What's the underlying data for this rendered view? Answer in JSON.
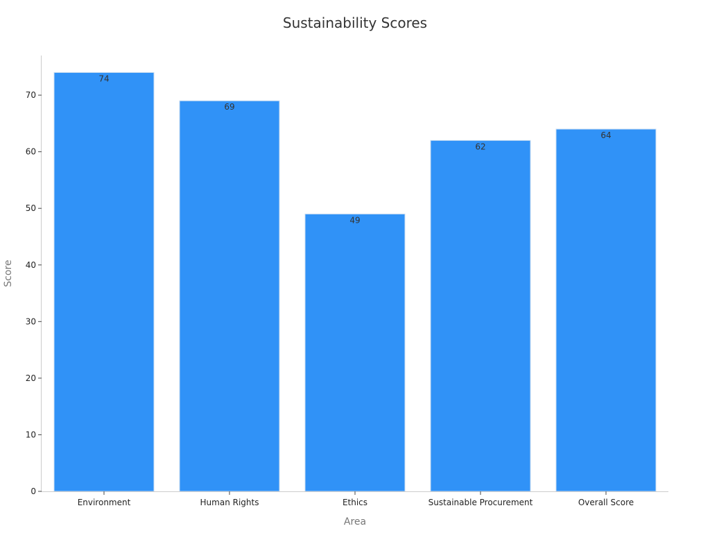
{
  "chart_data": {
    "type": "bar",
    "title": "Sustainability Scores",
    "xlabel": "Area",
    "ylabel": "Score",
    "categories": [
      "Environment",
      "Human Rights",
      "Ethics",
      "Sustainable Procurement",
      "Overall Score"
    ],
    "values": [
      74,
      69,
      49,
      62,
      64
    ],
    "ylim": [
      0,
      77
    ],
    "yticks": [
      0,
      10,
      20,
      30,
      40,
      50,
      60,
      70
    ],
    "grid": false,
    "legend": "none",
    "bar_color": "#3092f7",
    "bar_edge_color": "#c8dcf0",
    "data_label_position": "inside-top"
  }
}
